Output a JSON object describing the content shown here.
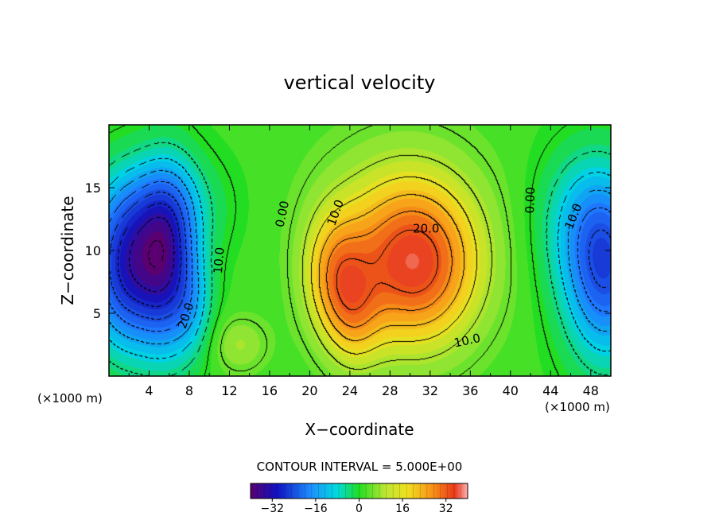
{
  "chart_data": {
    "type": "heatmap",
    "title": "vertical velocity",
    "xlabel": "X−coordinate",
    "ylabel": "Z−coordinate",
    "x_unit_left": "(×1000 m)",
    "x_unit_right": "(×1000 m)",
    "xlim": [
      0,
      50
    ],
    "ylim": [
      0,
      20
    ],
    "x_ticks": [
      4,
      8,
      12,
      16,
      20,
      24,
      28,
      32,
      36,
      40,
      44,
      48
    ],
    "y_ticks": [
      5,
      10,
      15
    ],
    "contour_interval_label": "CONTOUR INTERVAL = 5.000E+00",
    "colorbar": {
      "range": [
        -40,
        40
      ],
      "ticks": [
        -32,
        -16,
        0,
        16,
        32
      ],
      "tick_labels": [
        "−32",
        "−16",
        "0",
        "16",
        "32"
      ]
    },
    "contour_labels": [
      {
        "text": "0.00",
        "x": 17.3,
        "y": 12.9,
        "angle": -78
      },
      {
        "text": "10.0",
        "x": 22.6,
        "y": 13.0,
        "angle": -70
      },
      {
        "text": "20.0",
        "x": 31.6,
        "y": 11.7,
        "angle": 0
      },
      {
        "text": "10.0",
        "x": 35.7,
        "y": 2.8,
        "angle": -12
      },
      {
        "text": "0.00",
        "x": 42.0,
        "y": 14.0,
        "angle": -88
      },
      {
        "text": "10.0",
        "x": 46.3,
        "y": 12.7,
        "angle": -68
      },
      {
        "text": "10.0",
        "x": 11.0,
        "y": 9.2,
        "angle": -85
      },
      {
        "text": "20.0",
        "x": 7.7,
        "y": 4.8,
        "angle": -72
      }
    ],
    "field_components": [
      {
        "x": 30.5,
        "y": 8.5,
        "amp": 26,
        "sx": 4.5,
        "sy": 4.5
      },
      {
        "x": 29.0,
        "y": 12.5,
        "amp": 8,
        "sx": 6,
        "sy": 5
      },
      {
        "x": 22.5,
        "y": 8.0,
        "amp": 16,
        "sx": 2.2,
        "sy": 3.5
      },
      {
        "x": 24.5,
        "y": 4.5,
        "amp": 10,
        "sx": 2.0,
        "sy": 3.0
      },
      {
        "x": 13.0,
        "y": 2.5,
        "amp": 7,
        "sx": 2.0,
        "sy": 1.6
      },
      {
        "x": 2.0,
        "y": 8.5,
        "amp": -32,
        "sx": 3.0,
        "sy": 4.5
      },
      {
        "x": 6.0,
        "y": 9.0,
        "amp": -22,
        "sx": 2.0,
        "sy": 5.0
      },
      {
        "x": 5.5,
        "y": 13.5,
        "amp": -10,
        "sx": 4.0,
        "sy": 3.0
      },
      {
        "x": 8.5,
        "y": 5.5,
        "amp": -8,
        "sx": 1.5,
        "sy": 3.0
      },
      {
        "x": 49.5,
        "y": 8.0,
        "amp": -24,
        "sx": 3.0,
        "sy": 5.0
      },
      {
        "x": 47.5,
        "y": 12.5,
        "amp": -10,
        "sx": 3.5,
        "sy": 4.0
      }
    ]
  }
}
